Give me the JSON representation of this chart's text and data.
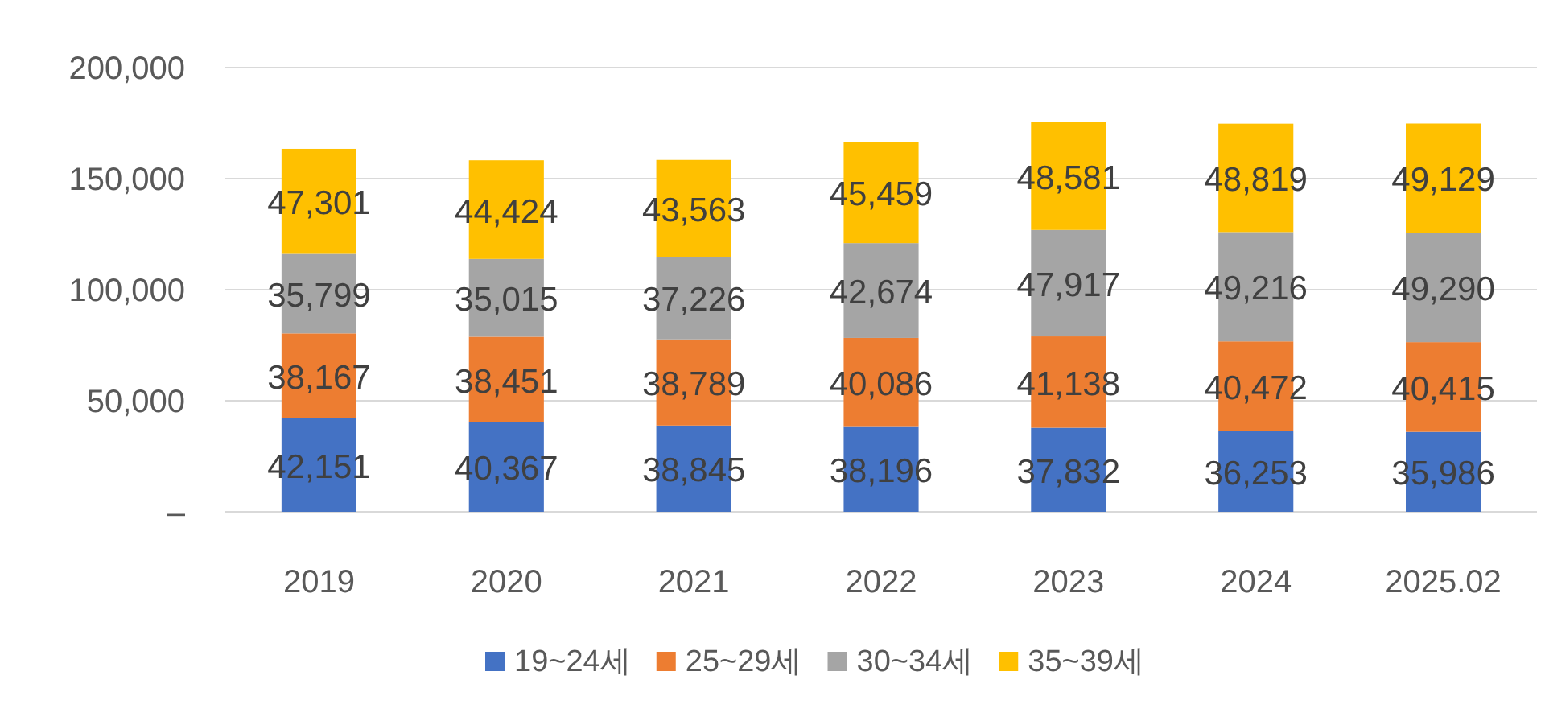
{
  "chart_data": {
    "type": "bar",
    "stacked": true,
    "categories": [
      "2019",
      "2020",
      "2021",
      "2022",
      "2023",
      "2024",
      "2025.02"
    ],
    "series": [
      {
        "name": "19~24세",
        "color": "#4472c4",
        "values": [
          42151,
          40367,
          38845,
          38196,
          37832,
          36253,
          35986
        ],
        "value_labels": [
          "42,151",
          "40,367",
          "38,845",
          "38,196",
          "37,832",
          "36,253",
          "35,986"
        ]
      },
      {
        "name": "25~29세",
        "color": "#ed7d31",
        "values": [
          38167,
          38451,
          38789,
          40086,
          41138,
          40472,
          40415
        ],
        "value_labels": [
          "38,167",
          "38,451",
          "38,789",
          "40,086",
          "41,138",
          "40,472",
          "40,415"
        ]
      },
      {
        "name": "30~34세",
        "color": "#a5a5a5",
        "values": [
          35799,
          35015,
          37226,
          42674,
          47917,
          49216,
          49290
        ],
        "value_labels": [
          "35,799",
          "35,015",
          "37,226",
          "42,674",
          "47,917",
          "49,216",
          "49,290"
        ]
      },
      {
        "name": "35~39세",
        "color": "#ffc000",
        "values": [
          47301,
          44424,
          43563,
          45459,
          48581,
          48819,
          49129
        ],
        "value_labels": [
          "47,301",
          "44,424",
          "43,563",
          "45,459",
          "48,581",
          "48,819",
          "49,129"
        ]
      }
    ],
    "ylim": [
      0,
      200000
    ],
    "yticks": [
      {
        "value": 0,
        "label": "–"
      },
      {
        "value": 50000,
        "label": "50,000"
      },
      {
        "value": 100000,
        "label": "100,000"
      },
      {
        "value": 150000,
        "label": "150,000"
      },
      {
        "value": 200000,
        "label": "200,000"
      }
    ],
    "grid": "y",
    "legend": "bottom"
  }
}
